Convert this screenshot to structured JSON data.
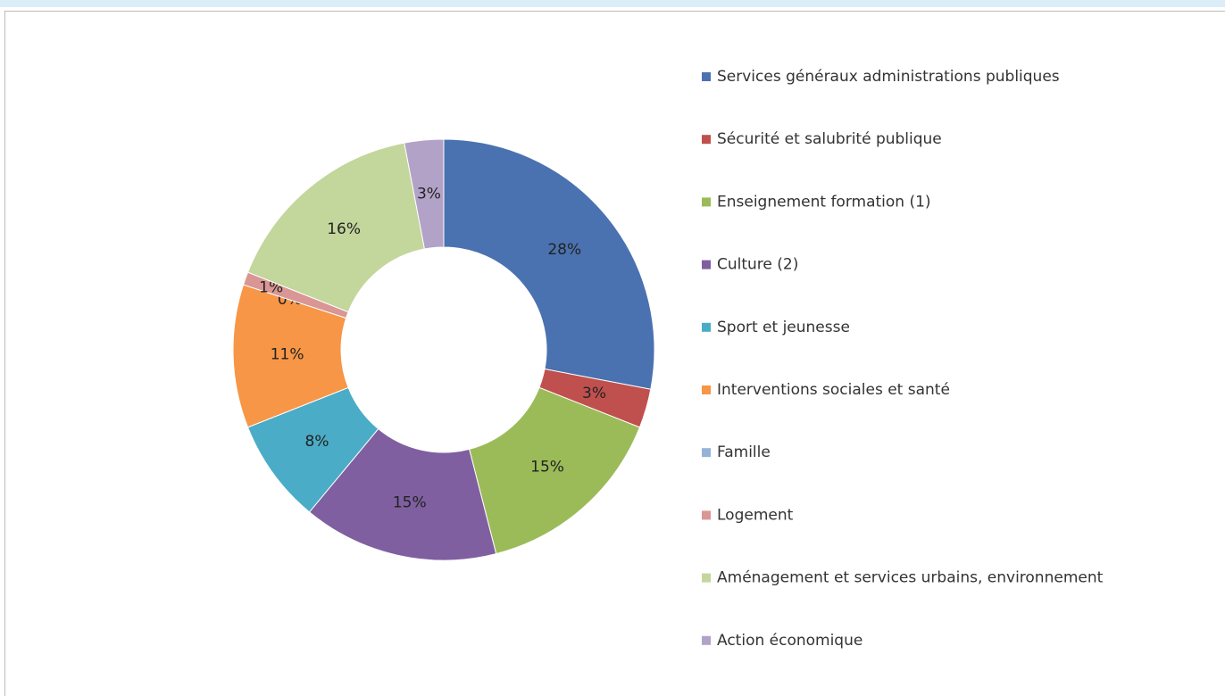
{
  "chart_data": {
    "type": "donut",
    "categories": [
      "Services généraux administrations publiques",
      "Sécurité et salubrité publique",
      "Enseignement formation (1)",
      "Culture (2)",
      "Sport et jeunesse",
      "Interventions sociales et santé",
      "Famille",
      "Logement",
      "Aménagement et services urbains, environnement",
      "Action économique"
    ],
    "values": [
      28,
      3,
      15,
      15,
      8,
      11,
      0,
      1,
      16,
      3
    ],
    "value_labels": [
      "28%",
      "3%",
      "15%",
      "15%",
      "8%",
      "11%",
      "0%",
      "1%",
      "16%",
      "3%"
    ],
    "colors": [
      "#4a72b0",
      "#c0504d",
      "#9bbb59",
      "#7f5fa0",
      "#4aacc6",
      "#f79646",
      "#95b3d7",
      "#d99694",
      "#c3d69b",
      "#b3a2c7"
    ],
    "legend": "right"
  }
}
